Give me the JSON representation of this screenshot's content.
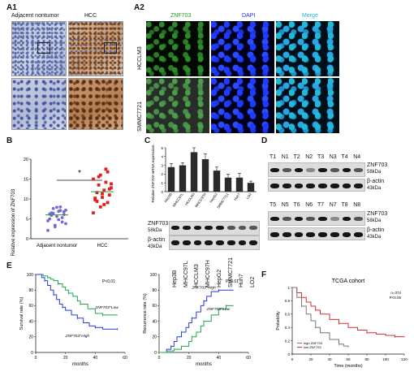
{
  "panels": {
    "a1": {
      "label": "A1",
      "left_header": "Adjacent nontumor",
      "right_header": "HCC"
    },
    "a2": {
      "label": "A2",
      "channels": [
        "ZNF703",
        "DAPI",
        "Merge"
      ],
      "channel_colors": [
        "#1a9a1a",
        "#1a2cff",
        "#18b6d8"
      ],
      "rows": [
        "HCCLM3",
        "SMMC7721"
      ]
    },
    "b": {
      "label": "B"
    },
    "c": {
      "label": "C"
    },
    "d": {
      "label": "D"
    },
    "e": {
      "label": "E"
    },
    "f": {
      "label": "F"
    }
  },
  "chart_data": [
    {
      "id": "B",
      "type": "scatter",
      "ylabel": "Relative expression of ZNF703",
      "categories": [
        "Adjacent nontumor",
        "HCC"
      ],
      "ylim": [
        0,
        20
      ],
      "yticks": [
        0,
        5,
        10,
        15,
        20
      ],
      "significance": "*",
      "series": [
        {
          "name": "Adjacent nontumor",
          "color": "#7b68d8",
          "values": [
            2.1,
            3.4,
            4.2,
            5.0,
            5.6,
            6.1,
            6.5,
            6.9,
            7.2,
            7.6,
            8.0,
            4.5,
            3.0,
            5.3,
            6.2,
            7.9,
            6.8,
            5.9,
            4.8,
            3.8,
            6.4,
            7.1
          ]
        },
        {
          "name": "HCC",
          "color": "#e02020",
          "values": [
            6.5,
            8.0,
            9.1,
            9.8,
            10.4,
            11.0,
            11.6,
            12.2,
            12.8,
            13.5,
            14.2,
            15.0,
            16.0,
            16.8,
            10.2,
            11.3,
            12.5,
            9.4,
            8.6,
            13.8,
            15.6,
            17.5
          ]
        }
      ],
      "means": [
        6.0,
        11.8
      ]
    },
    {
      "id": "C",
      "type": "bar",
      "ylabel": "Relative ZNF703 mRNA expression",
      "categories": [
        "Hep3B",
        "MHCC97L",
        "HCCLM3",
        "MHCC97H",
        "HepG2",
        "SMMC7721",
        "Huh7",
        "LO2"
      ],
      "ylim": [
        0,
        5
      ],
      "yticks": [
        0,
        1,
        2,
        3,
        4,
        5
      ],
      "values": [
        2.8,
        3.0,
        4.5,
        3.7,
        2.4,
        1.6,
        1.6,
        1.0
      ],
      "errors": [
        0.4,
        0.3,
        0.5,
        0.6,
        0.4,
        0.4,
        0.5,
        0.2
      ],
      "blot_rows": [
        "ZNF703",
        "58kDa",
        "β-actin",
        "43kDa"
      ],
      "lanes": [
        "Hep3B",
        "MHCC97L",
        "HCCLM3",
        "MHCC97H",
        "HepG2",
        "SMMC7721",
        "Huh7",
        "LO2"
      ]
    },
    {
      "id": "D",
      "type": "table",
      "blot_top_lanes": [
        "T1",
        "N1",
        "T2",
        "N2",
        "T3",
        "N3",
        "T4",
        "N4"
      ],
      "blot_bottom_lanes": [
        "T5",
        "N5",
        "T6",
        "N6",
        "T7",
        "N7",
        "T8",
        "N8"
      ],
      "rows": [
        "ZNF703",
        "58kDa",
        "β-actin",
        "43kDa"
      ]
    },
    {
      "id": "E-left",
      "type": "line",
      "ylabel": "Survival rate (%)",
      "xlabel": "months",
      "xlim": [
        0,
        60
      ],
      "ylim": [
        0,
        100
      ],
      "xticks": [
        0,
        20,
        40,
        60
      ],
      "yticks": [
        0,
        20,
        40,
        60,
        80,
        100
      ],
      "annotation": "P<0.01",
      "series": [
        {
          "name": "ZNF703^Low",
          "color": "#1aa84a",
          "x": [
            0,
            5,
            8,
            10,
            12,
            15,
            18,
            20,
            22,
            25,
            28,
            30,
            35,
            40,
            45,
            50,
            55
          ],
          "y": [
            100,
            98,
            96,
            94,
            92,
            88,
            84,
            80,
            76,
            72,
            66,
            62,
            56,
            50,
            48,
            48,
            48
          ]
        },
        {
          "name": "ZNF703^High",
          "color": "#2a3ad8",
          "x": [
            0,
            4,
            6,
            8,
            10,
            12,
            14,
            16,
            18,
            20,
            24,
            28,
            32,
            36,
            40,
            45,
            50,
            55
          ],
          "y": [
            100,
            96,
            92,
            86,
            80,
            74,
            68,
            62,
            58,
            54,
            48,
            44,
            38,
            34,
            32,
            30,
            30,
            30
          ]
        }
      ]
    },
    {
      "id": "E-right",
      "type": "line",
      "ylabel": "Recurrence rate (%)",
      "xlabel": "months",
      "xlim": [
        0,
        60
      ],
      "ylim": [
        0,
        100
      ],
      "xticks": [
        0,
        20,
        40,
        60
      ],
      "yticks": [
        0,
        20,
        40,
        60,
        80,
        100
      ],
      "annotation": "P<0.01",
      "series": [
        {
          "name": "ZNF703^High",
          "color": "#2a3ad8",
          "x": [
            0,
            5,
            8,
            10,
            12,
            15,
            18,
            20,
            22,
            25,
            28,
            30,
            32,
            35,
            40,
            45,
            50
          ],
          "y": [
            0,
            4,
            8,
            14,
            20,
            26,
            32,
            38,
            44,
            52,
            60,
            66,
            72,
            78,
            80,
            80,
            80
          ]
        },
        {
          "name": "ZNF703^Low",
          "color": "#1aa84a",
          "x": [
            0,
            5,
            10,
            15,
            20,
            22,
            25,
            28,
            30,
            35,
            40,
            45,
            50
          ],
          "y": [
            0,
            2,
            4,
            8,
            14,
            20,
            26,
            34,
            40,
            48,
            56,
            60,
            60
          ]
        }
      ]
    },
    {
      "id": "F",
      "type": "line",
      "title": "TCGA cohort",
      "ylabel": "Probability",
      "xlabel": "Time (months)",
      "xlim": [
        0,
        120
      ],
      "ylim": [
        0,
        1
      ],
      "xticks": [
        0,
        20,
        40,
        60,
        80,
        100,
        120
      ],
      "yticks": [
        0,
        0.2,
        0.4,
        0.6,
        0.8,
        1.0
      ],
      "annotation_lines": [
        "n=374",
        "P<0.05"
      ],
      "series": [
        {
          "name": "low ZNF703",
          "color": "#d03030",
          "x": [
            0,
            5,
            10,
            15,
            20,
            25,
            30,
            40,
            50,
            60,
            70,
            80,
            90,
            100,
            110,
            120
          ],
          "y": [
            1.0,
            0.92,
            0.85,
            0.78,
            0.72,
            0.66,
            0.6,
            0.52,
            0.46,
            0.4,
            0.36,
            0.32,
            0.3,
            0.28,
            0.26,
            0.25
          ]
        },
        {
          "name": "high ZNF703",
          "color": "#777777",
          "x": [
            0,
            5,
            10,
            15,
            20,
            25,
            30,
            40,
            50,
            55,
            60
          ],
          "y": [
            1.0,
            0.85,
            0.72,
            0.6,
            0.5,
            0.4,
            0.32,
            0.22,
            0.15,
            0.12,
            0.1
          ]
        }
      ]
    }
  ]
}
